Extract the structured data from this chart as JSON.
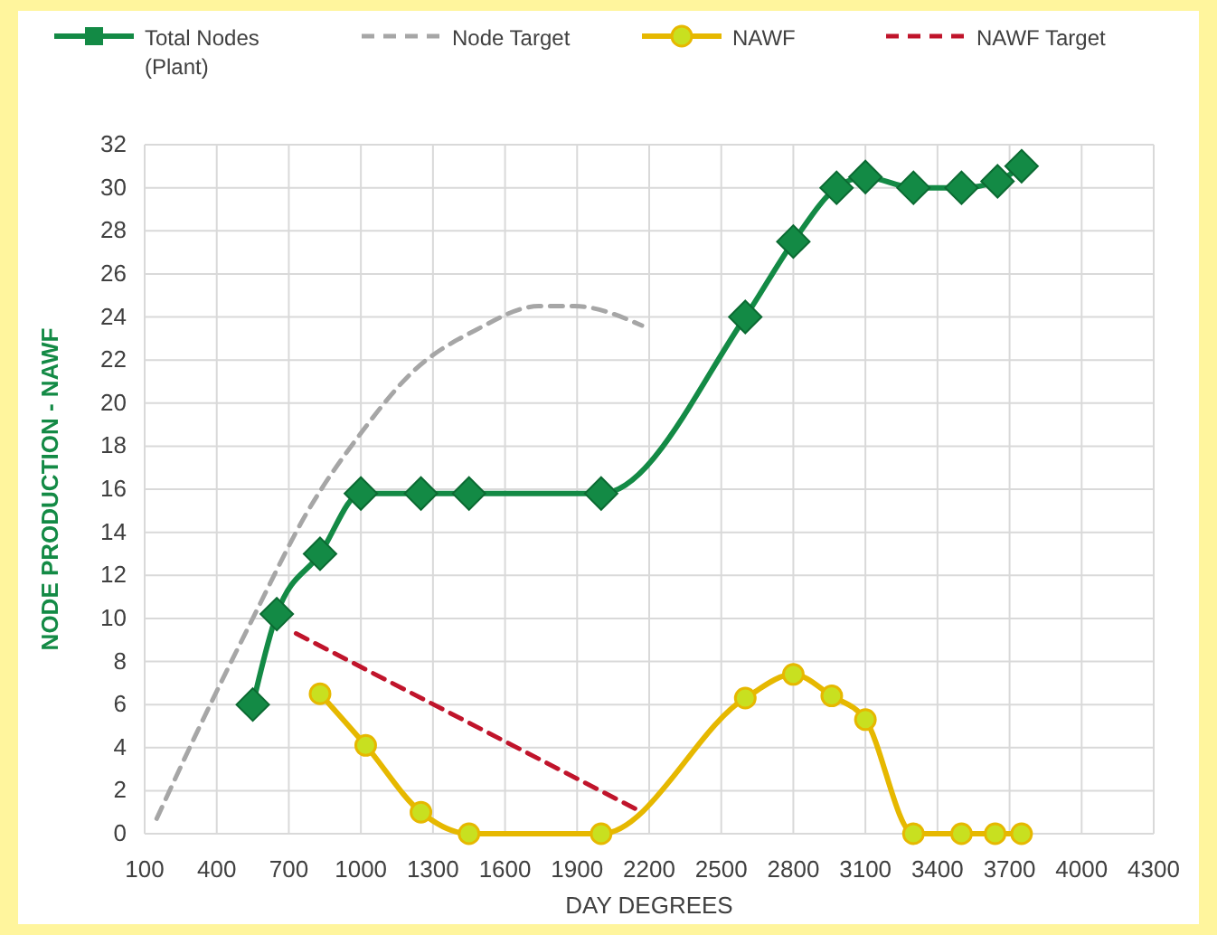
{
  "chart_data": {
    "type": "line",
    "xlabel": "DAY DEGREES",
    "ylabel": "NODE PRODUCTION  -  NAWF",
    "xlim": [
      100,
      4300
    ],
    "ylim": [
      0,
      32
    ],
    "xticks": [
      100,
      400,
      700,
      1000,
      1300,
      1600,
      1900,
      2200,
      2500,
      2800,
      3100,
      3400,
      3700,
      4000,
      4300
    ],
    "yticks": [
      0,
      2,
      4,
      6,
      8,
      10,
      12,
      14,
      16,
      18,
      20,
      22,
      24,
      26,
      28,
      30,
      32
    ],
    "grid": true,
    "legend": "top",
    "series": [
      {
        "name": "Total Nodes (Plant)",
        "color": "#138a45",
        "marker": "diamond",
        "line_style": "solid",
        "x": [
          550,
          650,
          830,
          1000,
          1250,
          1450,
          2000,
          2600,
          2800,
          2980,
          3100,
          3300,
          3500,
          3650,
          3750
        ],
        "values": [
          6,
          10.2,
          13,
          15.8,
          15.8,
          15.8,
          15.8,
          24,
          27.5,
          30,
          30.5,
          30,
          30,
          30.3,
          31
        ]
      },
      {
        "name": "Node Target",
        "color": "#a6a6a6",
        "marker": "none",
        "line_style": "dashed",
        "x": [
          150,
          330,
          550,
          780,
          1000,
          1220,
          1480,
          1740,
          1890,
          2170
        ],
        "values": [
          0.7,
          5,
          10,
          15,
          18.6,
          21.5,
          23.4,
          24.5,
          24.5,
          23.6
        ]
      },
      {
        "name": "NAWF",
        "color": "#e6b800",
        "marker": "circle",
        "line_style": "solid",
        "x": [
          830,
          1020,
          1250,
          1450,
          2000,
          2600,
          2800,
          2960,
          3100,
          3300,
          3500,
          3640,
          3750
        ],
        "values": [
          6.5,
          4.1,
          1,
          0,
          0,
          6.3,
          7.4,
          6.4,
          5.3,
          0,
          0,
          0,
          0
        ]
      },
      {
        "name": "NAWF Target",
        "color": "#c0142b",
        "marker": "none",
        "line_style": "dashed",
        "x": [
          730,
          2170
        ],
        "values": [
          9.3,
          1
        ]
      }
    ]
  }
}
